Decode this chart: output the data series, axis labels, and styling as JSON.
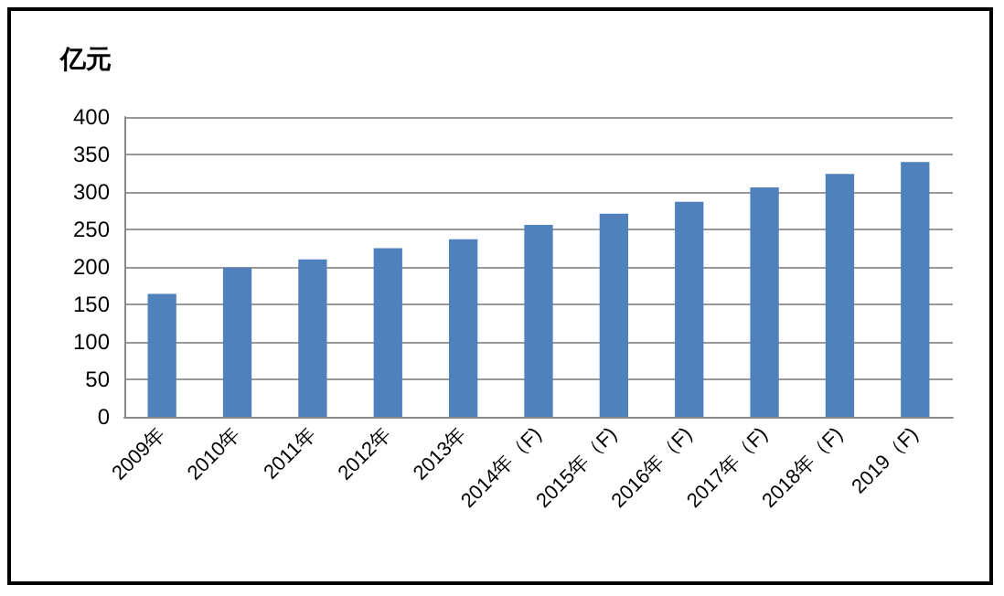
{
  "chart_data": {
    "type": "bar",
    "ylabel": "亿元",
    "categories": [
      "2009年",
      "2010年",
      "2011年",
      "2012年",
      "2013年",
      "2014年（F)",
      "2015年（F)",
      "2016年（F)",
      "2017年（F)",
      "2018年（F)",
      "2019（F)"
    ],
    "values": [
      164,
      199,
      210,
      225,
      237,
      256,
      271,
      287,
      306,
      324,
      340
    ],
    "color": "#4f81bd",
    "ylim": [
      0,
      400
    ],
    "yticks": [
      0,
      50,
      100,
      150,
      200,
      250,
      300,
      350,
      400
    ],
    "grid": "y"
  }
}
